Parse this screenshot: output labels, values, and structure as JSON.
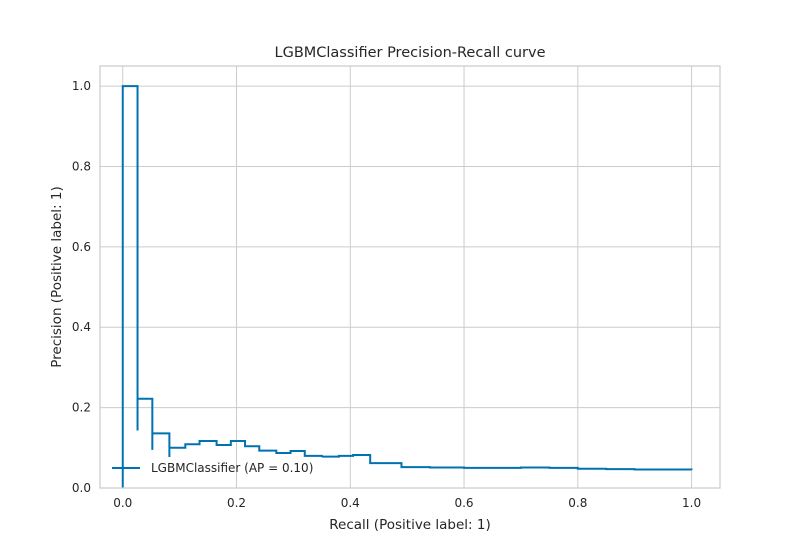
{
  "chart_data": {
    "type": "line",
    "title": "LGBMClassifier Precision-Recall curve",
    "xlabel": "Recall (Positive label: 1)",
    "ylabel": "Precision (Positive label: 1)",
    "xlim": [
      -0.04,
      1.05
    ],
    "ylim": [
      0.0,
      1.05
    ],
    "xticks": [
      0.0,
      0.2,
      0.4,
      0.6,
      0.8,
      1.0
    ],
    "xtick_labels": [
      "0.0",
      "0.2",
      "0.4",
      "0.6",
      "0.8",
      "1.0"
    ],
    "yticks": [
      0.0,
      0.2,
      0.4,
      0.6,
      0.8,
      1.0
    ],
    "ytick_labels": [
      "0.0",
      "0.2",
      "0.4",
      "0.6",
      "0.8",
      "1.0"
    ],
    "grid": true,
    "legend_position": "lower-left",
    "series": [
      {
        "name": "LGBMClassifier (AP = 0.10)",
        "color": "#0072B2",
        "drawstyle": "steps-post",
        "recall": [
          0.0,
          0.0,
          0.026,
          0.026,
          0.026,
          0.052,
          0.052,
          0.052,
          0.082,
          0.082,
          0.082,
          0.11,
          0.11,
          0.135,
          0.135,
          0.165,
          0.165,
          0.19,
          0.19,
          0.215,
          0.215,
          0.24,
          0.24,
          0.27,
          0.27,
          0.295,
          0.295,
          0.32,
          0.35,
          0.35,
          0.38,
          0.38,
          0.405,
          0.405,
          0.435,
          0.435,
          0.49,
          0.49,
          0.54,
          0.6,
          0.65,
          0.7,
          0.75,
          0.8,
          0.85,
          0.9,
          0.95,
          0.98,
          1.0
        ],
        "precision": [
          0.0,
          1.0,
          1.0,
          0.143,
          0.222,
          0.222,
          0.095,
          0.136,
          0.136,
          0.077,
          0.1,
          0.1,
          0.109,
          0.109,
          0.117,
          0.117,
          0.107,
          0.117,
          0.117,
          0.104,
          0.104,
          0.093,
          0.093,
          0.087,
          0.087,
          0.092,
          0.092,
          0.08,
          0.077,
          0.078,
          0.079,
          0.08,
          0.08,
          0.082,
          0.082,
          0.062,
          0.062,
          0.052,
          0.051,
          0.05,
          0.05,
          0.051,
          0.05,
          0.048,
          0.047,
          0.046,
          0.046,
          0.046,
          0.045
        ]
      }
    ]
  }
}
